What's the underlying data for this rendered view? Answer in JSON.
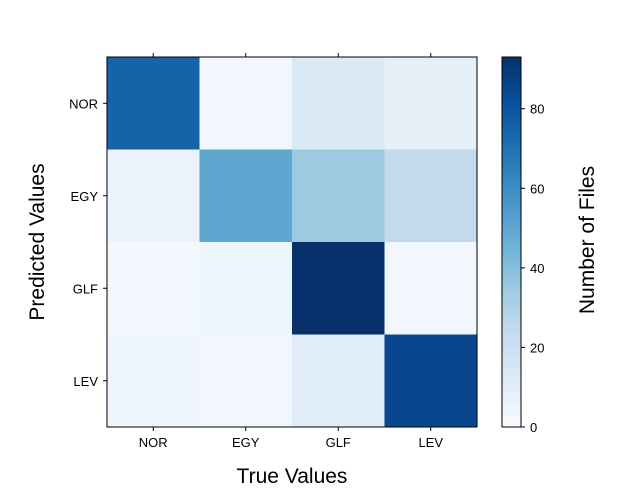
{
  "chart_data": {
    "type": "heatmap",
    "title": "",
    "xlabel": "True Values",
    "ylabel": "Predicted Values",
    "x_categories": [
      "NOR",
      "EGY",
      "GLF",
      "LEV"
    ],
    "y_categories": [
      "NOR",
      "EGY",
      "GLF",
      "LEV"
    ],
    "values": [
      [
        75,
        3,
        13,
        8
      ],
      [
        6,
        50,
        35,
        24
      ],
      [
        2,
        5,
        93,
        3
      ],
      [
        4,
        3,
        10,
        85
      ]
    ],
    "colorbar": {
      "label": "Number of Files",
      "min": 0,
      "max": 93,
      "ticks": [
        0,
        20,
        40,
        60,
        80
      ],
      "colormap": "Blues",
      "low_color": "#f7fbff",
      "high_color": "#08306b"
    }
  }
}
